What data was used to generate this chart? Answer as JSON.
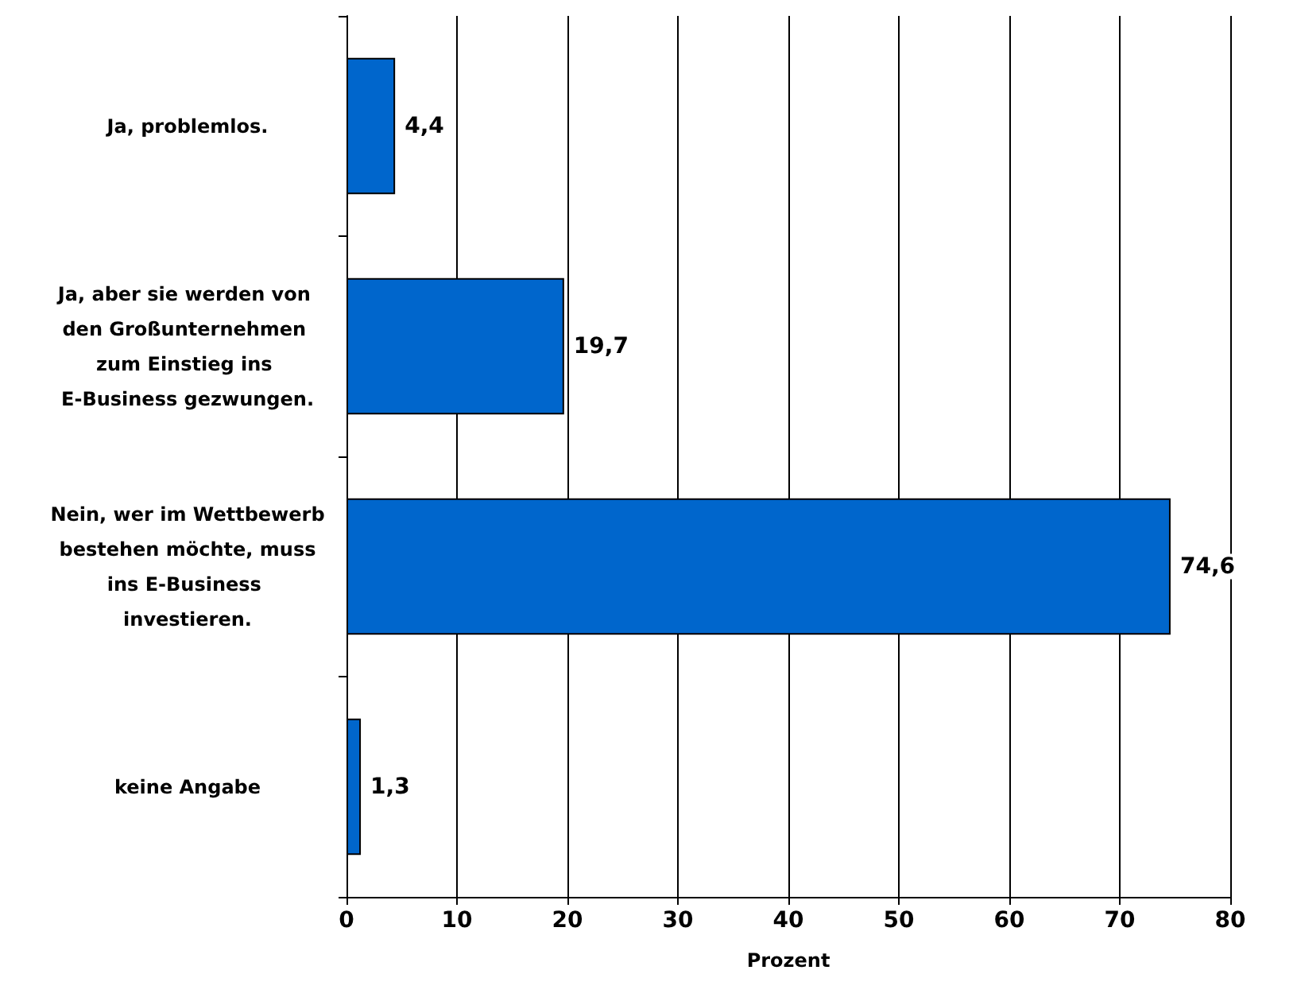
{
  "chart_data": {
    "type": "bar",
    "orientation": "horizontal",
    "xlabel": "Prozent",
    "categories": [
      "Ja, problemlos.",
      "Ja, aber sie werden von den Großunternehmen zum Einstieg ins E-Business gezwungen.",
      "Nein, wer im Wettbewerb bestehen möchte, muss ins E-Business investieren.",
      "keine Angabe"
    ],
    "values": [
      4.4,
      19.7,
      74.6,
      1.3
    ],
    "value_labels": [
      "4,4",
      "19,7",
      "74,6",
      "1,3"
    ],
    "color": "#0066cc",
    "xlim": [
      0,
      80
    ],
    "xticks": [
      0,
      10,
      20,
      30,
      40,
      50,
      60,
      70,
      80
    ],
    "grid": "x"
  }
}
